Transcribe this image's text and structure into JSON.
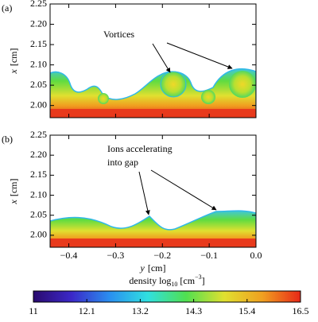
{
  "chart_data": [
    {
      "type": "heatmap",
      "panel_label": "(a)",
      "ylabel": [
        "x",
        "[cm]"
      ],
      "xlim": [
        -0.44,
        0.0
      ],
      "xticks": [
        -0.4,
        -0.3,
        -0.2,
        -0.1,
        0.0
      ],
      "ylim": [
        1.97,
        2.25
      ],
      "yticks": [
        {
          "value": 2,
          "label": "2.00"
        },
        {
          "value": 2.05,
          "label": "2.05"
        },
        {
          "value": 2.1,
          "label": "2.10"
        },
        {
          "value": 2.15,
          "label": "2.15"
        },
        {
          "value": 2.2,
          "label": "2.20"
        },
        {
          "value": 2.25,
          "label": "2.25"
        }
      ],
      "annotation": [
        "Vortices"
      ]
    },
    {
      "type": "heatmap",
      "panel_label": "(b)",
      "ylabel": [
        "x",
        "[cm]"
      ],
      "xlabel": [
        "y",
        "[cm]"
      ],
      "xlim": [
        -0.44,
        0.0
      ],
      "xticks": [
        {
          "value": -0.4,
          "label": "−0.4"
        },
        {
          "value": -0.3,
          "label": "−0.3"
        },
        {
          "value": -0.2,
          "label": "−0.2"
        },
        {
          "value": -0.1,
          "label": "−0.1"
        },
        {
          "value": 0,
          "label": "0.0"
        }
      ],
      "ylim": [
        1.97,
        2.25
      ],
      "yticks": [
        {
          "value": 2,
          "label": "2.00"
        },
        {
          "value": 2.05,
          "label": "2.05"
        },
        {
          "value": 2.1,
          "label": "2.10"
        },
        {
          "value": 2.15,
          "label": "2.15"
        },
        {
          "value": 2.2,
          "label": "2.20"
        },
        {
          "value": 2.25,
          "label": "2.25"
        }
      ],
      "annotation": [
        "Ions accelerating",
        "into gap"
      ]
    },
    {
      "type": "colorbar",
      "label": [
        "density log",
        "10",
        " [cm",
        "−3",
        "]"
      ],
      "clim": [
        11,
        16.5
      ],
      "cticks": [
        11,
        12.1,
        13.2,
        14.3,
        15.4,
        16.5
      ],
      "colors": [
        "#2a0a6e",
        "#3b28c8",
        "#2a8ff0",
        "#30e0e0",
        "#50e050",
        "#e0e030",
        "#f0a020",
        "#e82818"
      ]
    }
  ]
}
